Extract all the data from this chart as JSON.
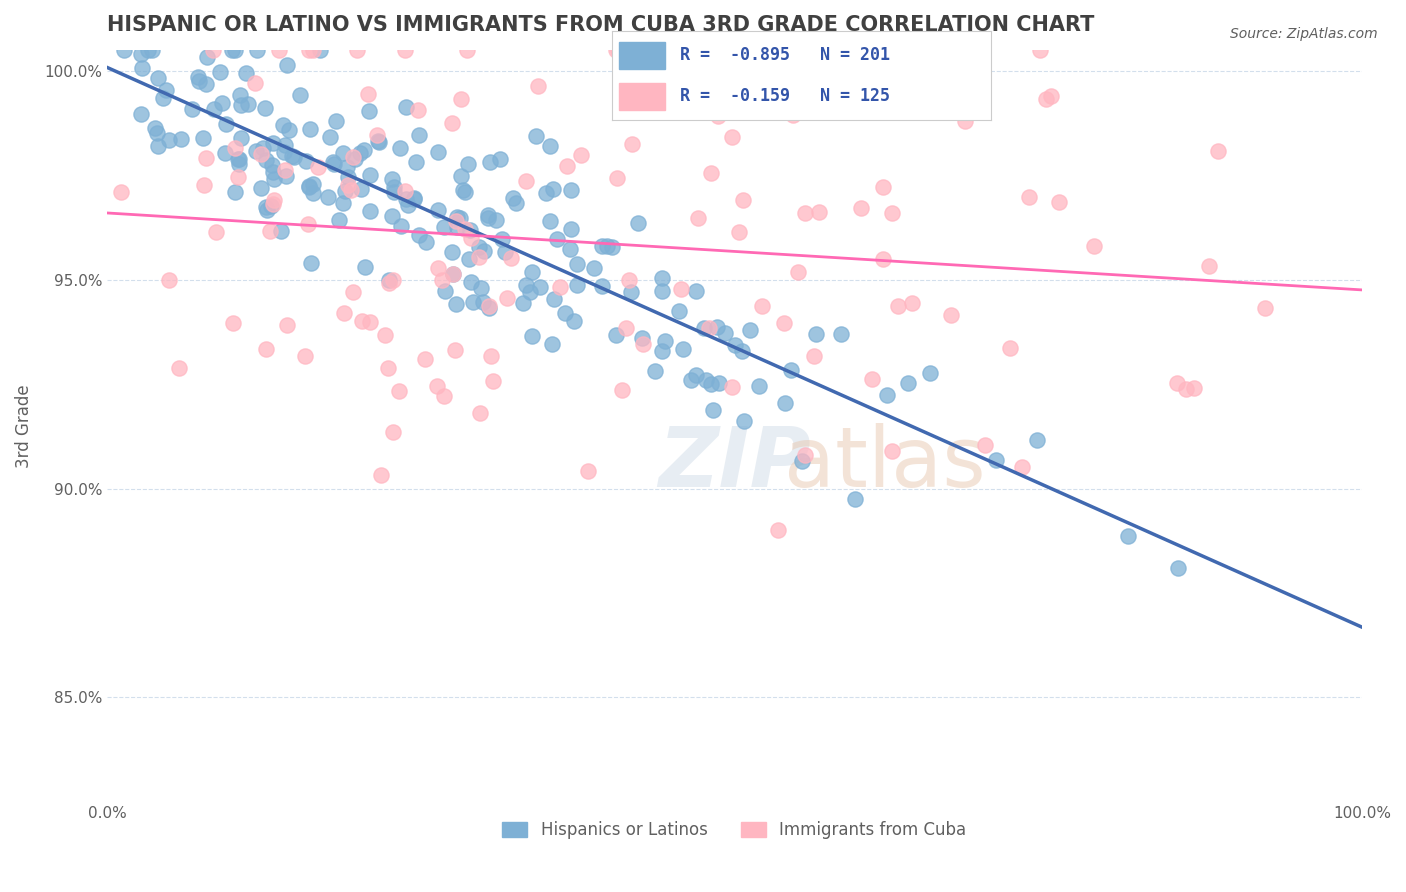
{
  "title": "HISPANIC OR LATINO VS IMMIGRANTS FROM CUBA 3RD GRADE CORRELATION CHART",
  "source_text": "Source: ZipAtlas.com",
  "xlabel": "",
  "ylabel": "3rd Grade",
  "xlim": [
    0.0,
    1.0
  ],
  "ylim": [
    0.825,
    1.005
  ],
  "yticks": [
    0.85,
    0.9,
    0.95,
    1.0
  ],
  "ytick_labels": [
    "85.0%",
    "90.0%",
    "95.0%",
    "100.0%"
  ],
  "xticks": [
    0.0,
    0.25,
    0.5,
    0.75,
    1.0
  ],
  "xtick_labels": [
    "0.0%",
    "",
    "",
    "",
    "100.0%"
  ],
  "legend_r1": "R = -0.895",
  "legend_n1": "N = 201",
  "legend_r2": "R = -0.159",
  "legend_n2": "N = 125",
  "legend_label1": "Hispanics or Latinos",
  "legend_label2": "Immigrants from Cuba",
  "blue_color": "#7EB0D5",
  "pink_color": "#FFB6C1",
  "blue_line_color": "#4169B0",
  "pink_line_color": "#FF69B4",
  "blue_r": -0.895,
  "blue_n": 201,
  "pink_r": -0.159,
  "pink_n": 125,
  "watermark": "ZIPatlas",
  "background_color": "#ffffff",
  "grid_color": "#c8d8e8",
  "title_color": "#404040",
  "axis_label_color": "#606060"
}
